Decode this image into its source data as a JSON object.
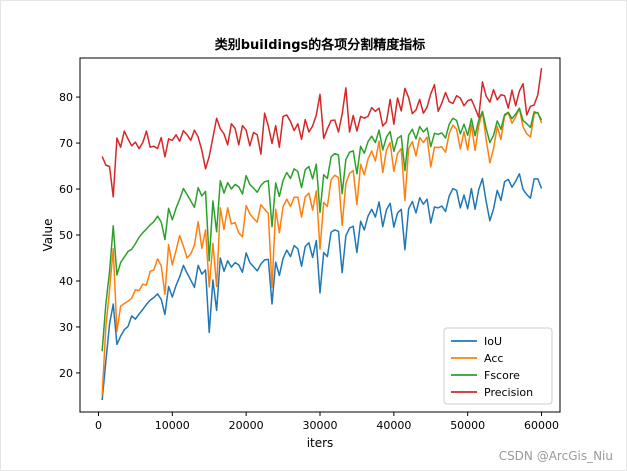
{
  "watermark": "CSDN @ArcGis_Niu",
  "chart_data": {
    "type": "line",
    "title": "类别buildings的各项分割精度指标",
    "xlabel": "iters",
    "ylabel": "Value",
    "xlim": [
      -2500,
      62500
    ],
    "ylim": [
      11.5,
      88.5
    ],
    "xticks": [
      0,
      10000,
      20000,
      30000,
      40000,
      50000,
      60000
    ],
    "yticks": [
      20,
      30,
      40,
      50,
      60,
      70,
      80
    ],
    "grid": false,
    "legend_position": "lower-right",
    "x_start": 500,
    "x_step": 500,
    "series": [
      {
        "name": "IoU",
        "color": "#1f77b4",
        "values": [
          14.1,
          22.5,
          30.6,
          35.0,
          26.2,
          28.0,
          29.4,
          30.1,
          32.4,
          31.7,
          32.8,
          33.8,
          34.9,
          35.8,
          36.4,
          37.2,
          36.0,
          32.7,
          38.8,
          36.5,
          39.0,
          40.9,
          43.4,
          41.7,
          40.2,
          38.6,
          43.4,
          41.5,
          42.4,
          28.8,
          40.2,
          33.6,
          45.0,
          42.1,
          44.4,
          43.0,
          44.0,
          43.5,
          41.9,
          46.1,
          44.0,
          43.1,
          42.2,
          43.7,
          44.6,
          44.7,
          35.0,
          44.1,
          41.2,
          44.9,
          46.7,
          45.3,
          47.7,
          47.0,
          43.2,
          47.5,
          48.3,
          45.1,
          48.8,
          37.4,
          46.2,
          45.3,
          50.6,
          51.1,
          50.8,
          41.8,
          49.8,
          51.5,
          51.9,
          46.2,
          53.0,
          51.1,
          54.1,
          55.6,
          53.9,
          57.2,
          51.8,
          55.5,
          56.9,
          51.7,
          54.8,
          55.6,
          46.8,
          55.7,
          57.3,
          54.8,
          58.1,
          56.7,
          57.8,
          52.6,
          56.1,
          55.9,
          56.3,
          55.1,
          58.5,
          60.1,
          59.7,
          55.9,
          58.7,
          55.7,
          60.1,
          55.6,
          59.9,
          62.3,
          57.3,
          53.1,
          55.7,
          59.7,
          57.5,
          61.6,
          62.1,
          60.4,
          61.7,
          63.3,
          59.9,
          58.8,
          58.0,
          62.2,
          62.2,
          60.1
        ]
      },
      {
        "name": "Acc",
        "color": "#ff7f0e",
        "values": [
          15.1,
          30.0,
          38.0,
          47.0,
          29.0,
          34.5,
          35.1,
          35.6,
          36.2,
          38.1,
          37.9,
          39.3,
          39.1,
          42.1,
          42.4,
          44.8,
          43.3,
          37.1,
          47.9,
          43.5,
          46.6,
          49.9,
          47.6,
          45.0,
          45.9,
          47.8,
          52.9,
          47.1,
          51.1,
          38.7,
          48.2,
          38.8,
          55.9,
          51.2,
          55.9,
          52.4,
          52.7,
          50.5,
          49.6,
          56.4,
          54.6,
          53.6,
          52.8,
          56.6,
          55.6,
          54.7,
          38.6,
          55.6,
          50.5,
          56.2,
          57.8,
          56.2,
          58.2,
          58.2,
          53.9,
          58.3,
          59.1,
          55.4,
          59.6,
          46.9,
          57.1,
          56.2,
          62.0,
          63.0,
          62.5,
          52.1,
          61.2,
          63.4,
          64.0,
          56.6,
          65.4,
          63.1,
          66.5,
          68.3,
          66.1,
          70.4,
          63.6,
          68.5,
          70.1,
          63.8,
          67.7,
          68.8,
          57.5,
          68.8,
          70.3,
          67.2,
          71.2,
          70.1,
          71.3,
          64.8,
          69.1,
          69.0,
          69.2,
          68.0,
          72.1,
          73.9,
          73.0,
          68.7,
          72.5,
          68.5,
          74.0,
          68.4,
          73.8,
          76.8,
          70.8,
          65.7,
          68.8,
          73.6,
          70.8,
          75.9,
          76.5,
          74.3,
          75.7,
          77.5,
          73.5,
          72.0,
          71.3,
          76.3,
          76.7,
          74.3
        ]
      },
      {
        "name": "Fscore",
        "color": "#2ca02c",
        "values": [
          24.7,
          35.0,
          42.0,
          52.0,
          41.3,
          44.0,
          45.2,
          46.4,
          46.9,
          48.1,
          49.5,
          50.5,
          51.3,
          52.2,
          52.9,
          54.1,
          52.8,
          49.0,
          55.8,
          53.3,
          55.8,
          57.8,
          60.1,
          58.8,
          57.4,
          56.0,
          60.3,
          58.5,
          59.5,
          44.4,
          57.4,
          50.7,
          61.8,
          59.1,
          61.4,
          60.0,
          61.0,
          60.5,
          58.9,
          62.9,
          61.0,
          60.2,
          59.3,
          60.8,
          61.6,
          61.8,
          51.8,
          61.3,
          58.4,
          61.9,
          63.6,
          62.3,
          64.4,
          63.8,
          60.3,
          64.2,
          64.9,
          62.2,
          65.4,
          54.9,
          63.1,
          62.3,
          67.0,
          67.7,
          67.4,
          59.0,
          66.4,
          68.0,
          68.3,
          63.3,
          69.3,
          67.8,
          70.3,
          71.5,
          70.1,
          72.8,
          68.5,
          71.3,
          72.5,
          68.2,
          71.0,
          71.6,
          64.0,
          71.7,
          73.0,
          70.9,
          73.6,
          72.4,
          73.3,
          69.2,
          72.1,
          71.9,
          72.2,
          71.1,
          74.1,
          75.4,
          74.9,
          72.0,
          74.1,
          71.7,
          75.3,
          71.6,
          75.0,
          76.9,
          73.2,
          70.1,
          71.7,
          74.8,
          73.0,
          76.2,
          76.7,
          75.3,
          76.3,
          77.6,
          74.9,
          74.2,
          73.4,
          76.8,
          76.5,
          75.0
        ]
      },
      {
        "name": "Precision",
        "color": "#d62728",
        "values": [
          67.1,
          65.2,
          64.9,
          58.3,
          71.1,
          69.1,
          72.6,
          70.9,
          69.4,
          70.2,
          68.8,
          70.1,
          72.6,
          69.1,
          69.3,
          68.8,
          71.2,
          67.0,
          70.9,
          70.6,
          71.8,
          70.4,
          72.7,
          71.8,
          70.6,
          72.8,
          71.3,
          68.4,
          64.4,
          67.1,
          71.2,
          75.4,
          73.1,
          72.0,
          69.6,
          74.2,
          73.2,
          69.6,
          73.8,
          72.8,
          69.4,
          72.3,
          71.8,
          67.6,
          76.5,
          73.7,
          69.9,
          73.8,
          69.1,
          75.8,
          76.1,
          74.7,
          72.7,
          74.2,
          70.8,
          75.1,
          72.4,
          73.7,
          76.1,
          80.6,
          71.0,
          73.1,
          74.9,
          75.0,
          72.4,
          76.3,
          82.0,
          72.4,
          76.0,
          72.6,
          75.8,
          75.4,
          75.8,
          77.7,
          76.9,
          77.6,
          73.7,
          74.6,
          79.5,
          74.1,
          79.8,
          77.0,
          81.9,
          79.9,
          76.4,
          77.2,
          79.5,
          76.5,
          77.8,
          80.7,
          82.7,
          76.9,
          78.7,
          81.0,
          79.0,
          78.6,
          80.3,
          79.8,
          78.1,
          79.2,
          79.5,
          77.6,
          75.6,
          83.3,
          80.2,
          78.9,
          81.6,
          79.4,
          80.5,
          80.3,
          77.6,
          81.5,
          78.1,
          81.3,
          82.9,
          76.1,
          78.0,
          78.3,
          80.5,
          86.3
        ]
      }
    ]
  }
}
